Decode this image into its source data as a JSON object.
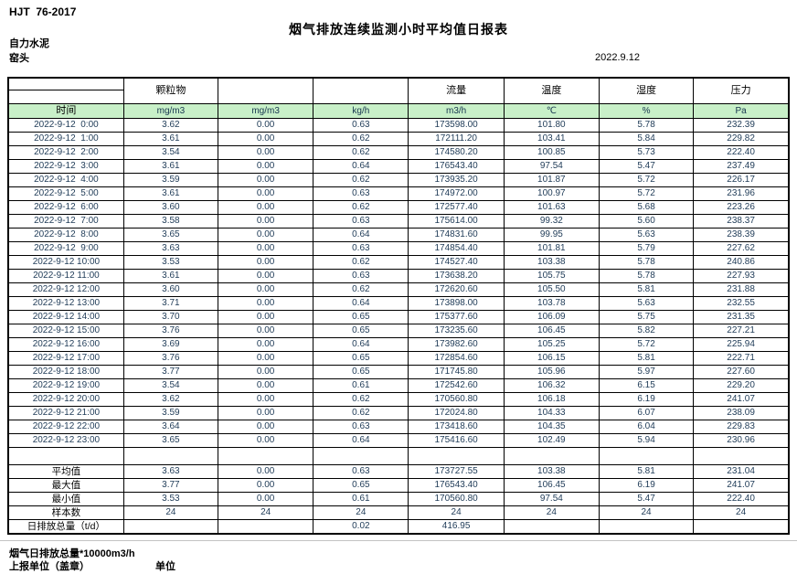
{
  "header": {
    "doc_code": "HJT  76-2017",
    "title": "烟气排放连续监测小时平均值日报表",
    "company": "自力水泥",
    "station": "窑头",
    "date": "2022.9.12"
  },
  "table": {
    "group_headers": {
      "particulate": "颗粒物",
      "flow": "流量",
      "temperature": "温度",
      "humidity": "湿度",
      "pressure": "压力"
    },
    "unit_row": [
      "时间",
      "mg/m3",
      "mg/m3",
      "kg/h",
      "m3/h",
      "℃",
      "%",
      "Pa"
    ],
    "rows": [
      [
        "2022-9-12  0:00",
        "3.62",
        "0.00",
        "0.63",
        "173598.00",
        "101.80",
        "5.78",
        "232.39"
      ],
      [
        "2022-9-12  1:00",
        "3.61",
        "0.00",
        "0.62",
        "172111.20",
        "103.41",
        "5.84",
        "229.82"
      ],
      [
        "2022-9-12  2:00",
        "3.54",
        "0.00",
        "0.62",
        "174580.20",
        "100.85",
        "5.73",
        "222.40"
      ],
      [
        "2022-9-12  3:00",
        "3.61",
        "0.00",
        "0.64",
        "176543.40",
        "97.54",
        "5.47",
        "237.49"
      ],
      [
        "2022-9-12  4:00",
        "3.59",
        "0.00",
        "0.62",
        "173935.20",
        "101.87",
        "5.72",
        "226.17"
      ],
      [
        "2022-9-12  5:00",
        "3.61",
        "0.00",
        "0.63",
        "174972.00",
        "100.97",
        "5.72",
        "231.96"
      ],
      [
        "2022-9-12  6:00",
        "3.60",
        "0.00",
        "0.62",
        "172577.40",
        "101.63",
        "5.68",
        "223.26"
      ],
      [
        "2022-9-12  7:00",
        "3.58",
        "0.00",
        "0.63",
        "175614.00",
        "99.32",
        "5.60",
        "238.37"
      ],
      [
        "2022-9-12  8:00",
        "3.65",
        "0.00",
        "0.64",
        "174831.60",
        "99.95",
        "5.63",
        "238.39"
      ],
      [
        "2022-9-12  9:00",
        "3.63",
        "0.00",
        "0.63",
        "174854.40",
        "101.81",
        "5.79",
        "227.62"
      ],
      [
        "2022-9-12 10:00",
        "3.53",
        "0.00",
        "0.62",
        "174527.40",
        "103.38",
        "5.78",
        "240.86"
      ],
      [
        "2022-9-12 11:00",
        "3.61",
        "0.00",
        "0.63",
        "173638.20",
        "105.75",
        "5.78",
        "227.93"
      ],
      [
        "2022-9-12 12:00",
        "3.60",
        "0.00",
        "0.62",
        "172620.60",
        "105.50",
        "5.81",
        "231.88"
      ],
      [
        "2022-9-12 13:00",
        "3.71",
        "0.00",
        "0.64",
        "173898.00",
        "103.78",
        "5.63",
        "232.55"
      ],
      [
        "2022-9-12 14:00",
        "3.70",
        "0.00",
        "0.65",
        "175377.60",
        "106.09",
        "5.75",
        "231.35"
      ],
      [
        "2022-9-12 15:00",
        "3.76",
        "0.00",
        "0.65",
        "173235.60",
        "106.45",
        "5.82",
        "227.21"
      ],
      [
        "2022-9-12 16:00",
        "3.69",
        "0.00",
        "0.64",
        "173982.60",
        "105.25",
        "5.72",
        "225.94"
      ],
      [
        "2022-9-12 17:00",
        "3.76",
        "0.00",
        "0.65",
        "172854.60",
        "106.15",
        "5.81",
        "222.71"
      ],
      [
        "2022-9-12 18:00",
        "3.77",
        "0.00",
        "0.65",
        "171745.80",
        "105.96",
        "5.97",
        "227.60"
      ],
      [
        "2022-9-12 19:00",
        "3.54",
        "0.00",
        "0.61",
        "172542.60",
        "106.32",
        "6.15",
        "229.20"
      ],
      [
        "2022-9-12 20:00",
        "3.62",
        "0.00",
        "0.62",
        "170560.80",
        "106.18",
        "6.19",
        "241.07"
      ],
      [
        "2022-9-12 21:00",
        "3.59",
        "0.00",
        "0.62",
        "172024.80",
        "104.33",
        "6.07",
        "238.09"
      ],
      [
        "2022-9-12 22:00",
        "3.64",
        "0.00",
        "0.63",
        "173418.60",
        "104.35",
        "6.04",
        "229.83"
      ],
      [
        "2022-9-12 23:00",
        "3.65",
        "0.00",
        "0.64",
        "175416.60",
        "102.49",
        "5.94",
        "230.96"
      ]
    ],
    "summary": [
      {
        "label": "平均值",
        "values": [
          "3.63",
          "0.00",
          "0.63",
          "173727.55",
          "103.38",
          "5.81",
          "231.04"
        ]
      },
      {
        "label": "最大值",
        "values": [
          "3.77",
          "0.00",
          "0.65",
          "176543.40",
          "106.45",
          "6.19",
          "241.07"
        ]
      },
      {
        "label": "最小值",
        "values": [
          "3.53",
          "0.00",
          "0.61",
          "170560.80",
          "97.54",
          "5.47",
          "222.40"
        ]
      },
      {
        "label": "样本数",
        "values": [
          "24",
          "24",
          "24",
          "24",
          "24",
          "24",
          "24"
        ]
      },
      {
        "label": "日排放总量（t/d）",
        "values": [
          "",
          "",
          "0.02",
          "416.95",
          "",
          "",
          ""
        ]
      }
    ]
  },
  "footer": {
    "note": "烟气日排放总量*10000m3/h",
    "report_unit_label": "上报单位（盖章）",
    "unit_label": "单位"
  },
  "colors": {
    "header_green": "#c8f0c8",
    "data_text": "#1f3b57"
  }
}
